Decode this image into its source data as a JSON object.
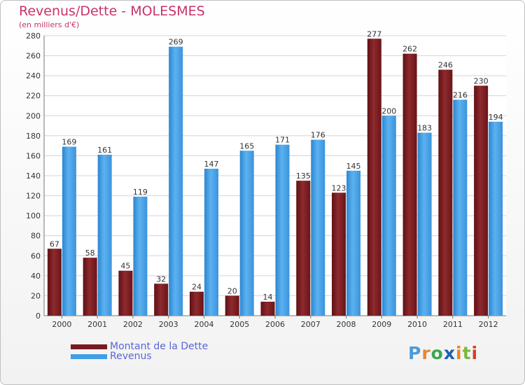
{
  "title": "Revenus/Dette - MOLESMES",
  "subtitle": "(en milliers d'€)",
  "colors": {
    "dette": "#7a1b1f",
    "revenus": "#3f9ee6",
    "title": "#c8326a",
    "legend_text": "#5b66d6"
  },
  "logo": {
    "text": "Proxiti",
    "letters": [
      "P",
      "r",
      "o",
      "x",
      "i",
      "t",
      "i"
    ],
    "colors": [
      "#4d9ad6",
      "#e8862d",
      "#3aa84a",
      "#1f5fb0",
      "#e8862d",
      "#7ab940",
      "#d93d2b"
    ]
  },
  "chart_data": {
    "type": "bar",
    "categories": [
      "2000",
      "2001",
      "2002",
      "2003",
      "2004",
      "2005",
      "2006",
      "2007",
      "2008",
      "2009",
      "2010",
      "2011",
      "2012"
    ],
    "series": [
      {
        "name": "Montant de la Dette",
        "values": [
          67,
          58,
          45,
          32,
          24,
          20,
          14,
          135,
          123,
          277,
          262,
          246,
          230
        ]
      },
      {
        "name": "Revenus",
        "values": [
          169,
          161,
          119,
          269,
          147,
          165,
          171,
          176,
          145,
          200,
          183,
          216,
          194
        ]
      }
    ],
    "yticks": [
      0,
      20,
      40,
      60,
      80,
      100,
      120,
      140,
      160,
      180,
      200,
      220,
      240,
      260,
      280
    ],
    "ylim": [
      0,
      280
    ],
    "grid": true,
    "legend_position": "bottom-left"
  }
}
